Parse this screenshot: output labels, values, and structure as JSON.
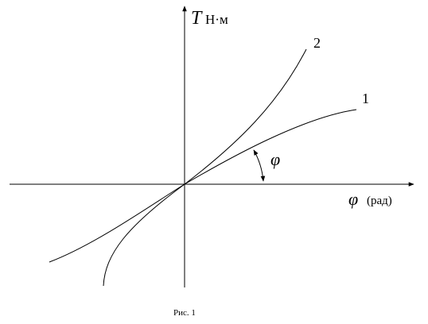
{
  "axes": {
    "y_label": "T",
    "y_unit": "Н·м",
    "x_label": "φ",
    "x_unit": "(рад)"
  },
  "curves": [
    {
      "label": "1"
    },
    {
      "label": "2"
    }
  ],
  "angle_label": "φ",
  "caption": "Рис. 1"
}
